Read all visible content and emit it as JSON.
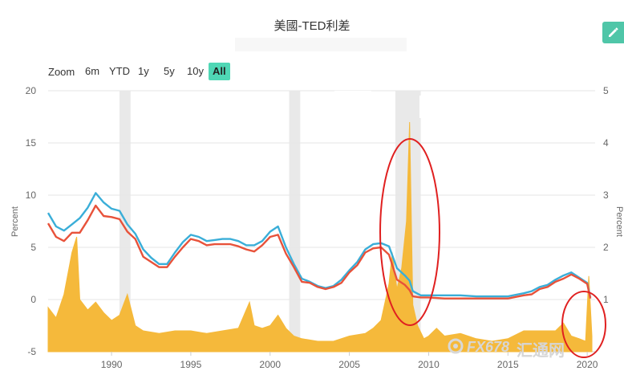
{
  "title": "美國-TED利差",
  "zoom": {
    "label": "Zoom",
    "buttons": [
      "6m",
      "YTD",
      "1y",
      "5y",
      "10y",
      "All"
    ],
    "active": "All"
  },
  "watermark": {
    "brand": "FX678",
    "cn": "汇通网"
  },
  "colors": {
    "spread": "#f5b93b",
    "blue": "#3aaed8",
    "red": "#e8523a",
    "recession": "#e9e9e9",
    "circle": "#e02020",
    "accent": "#4fd7b5"
  },
  "chart_data": {
    "type": "line",
    "xlabel": "",
    "ylabel": "Percent",
    "y2label": "Percent",
    "xlim": [
      1986,
      2020.5
    ],
    "ylim": [
      -5,
      20
    ],
    "y2lim": [
      0,
      5
    ],
    "xticks": [
      "1990",
      "1995",
      "2000",
      "2005",
      "2010",
      "2015",
      "2020"
    ],
    "yticks": [
      "-5",
      "0",
      "5",
      "10",
      "15",
      "20"
    ],
    "y2ticks": [
      "1",
      "2",
      "3",
      "4",
      "5"
    ],
    "recessions": [
      [
        1990.5,
        1991.2
      ],
      [
        2001.2,
        2001.9
      ],
      [
        2007.9,
        2009.5
      ]
    ],
    "series": [
      {
        "axis": "left",
        "x": [
          1986,
          1986.5,
          1987,
          1987.5,
          1988,
          1988.5,
          1989,
          1989.5,
          1990,
          1990.5,
          1991,
          1991.5,
          1992,
          1992.5,
          1993,
          1993.5,
          1994,
          1994.5,
          1995,
          1995.5,
          1996,
          1996.5,
          1997,
          1997.5,
          1998,
          1998.5,
          1999,
          1999.5,
          2000,
          2000.5,
          2001,
          2001.5,
          2002,
          2002.5,
          2003,
          2003.5,
          2004,
          2004.5,
          2005,
          2005.5,
          2006,
          2006.5,
          2007,
          2007.5,
          2008,
          2008.5,
          2008.8,
          2009,
          2009.5,
          2010,
          2011,
          2012,
          2013,
          2014,
          2015,
          2016,
          2016.5,
          2017,
          2017.5,
          2018,
          2018.5,
          2019,
          2019.5,
          2020,
          2020.2
        ],
        "y": [
          8.3,
          7.0,
          6.6,
          7.2,
          7.8,
          8.8,
          10.2,
          9.3,
          8.7,
          8.5,
          7.2,
          6.3,
          4.8,
          4.0,
          3.4,
          3.4,
          4.5,
          5.5,
          6.2,
          6.0,
          5.6,
          5.7,
          5.8,
          5.8,
          5.6,
          5.2,
          5.2,
          5.6,
          6.5,
          7.0,
          5.0,
          3.4,
          2.0,
          1.7,
          1.3,
          1.1,
          1.3,
          1.9,
          2.8,
          3.6,
          4.8,
          5.3,
          5.4,
          5.1,
          3.0,
          2.3,
          1.8,
          0.8,
          0.4,
          0.4,
          0.4,
          0.4,
          0.3,
          0.3,
          0.3,
          0.6,
          0.8,
          1.2,
          1.4,
          1.9,
          2.3,
          2.6,
          2.1,
          1.6,
          0.2
        ]
      },
      {
        "axis": "left",
        "x": [
          1986,
          1986.5,
          1987,
          1987.5,
          1988,
          1988.5,
          1989,
          1989.5,
          1990,
          1990.5,
          1991,
          1991.5,
          1992,
          1992.5,
          1993,
          1993.5,
          1994,
          1994.5,
          1995,
          1995.5,
          1996,
          1996.5,
          1997,
          1997.5,
          1998,
          1998.5,
          1999,
          1999.5,
          2000,
          2000.5,
          2001,
          2001.5,
          2002,
          2002.5,
          2003,
          2003.5,
          2004,
          2004.5,
          2005,
          2005.5,
          2006,
          2006.5,
          2007,
          2007.5,
          2008,
          2008.5,
          2008.8,
          2009,
          2009.5,
          2010,
          2011,
          2012,
          2013,
          2014,
          2015,
          2016,
          2016.5,
          2017,
          2017.5,
          2018,
          2018.5,
          2019,
          2019.5,
          2020,
          2020.2
        ],
        "y": [
          7.3,
          6.0,
          5.6,
          6.4,
          6.4,
          7.6,
          9.0,
          8.0,
          7.9,
          7.7,
          6.5,
          5.8,
          4.1,
          3.6,
          3.1,
          3.1,
          4.1,
          5.0,
          5.8,
          5.6,
          5.2,
          5.3,
          5.3,
          5.3,
          5.1,
          4.8,
          4.6,
          5.2,
          6.0,
          6.2,
          4.4,
          3.1,
          1.7,
          1.6,
          1.2,
          1.0,
          1.2,
          1.6,
          2.6,
          3.3,
          4.5,
          4.9,
          5.0,
          4.3,
          1.9,
          1.4,
          0.9,
          0.3,
          0.2,
          0.2,
          0.1,
          0.1,
          0.1,
          0.1,
          0.1,
          0.4,
          0.5,
          1.0,
          1.2,
          1.7,
          2.0,
          2.4,
          2.0,
          1.5,
          0.1
        ]
      },
      {
        "axis": "right",
        "x": [
          1986,
          1986.5,
          1987,
          1987.5,
          1987.8,
          1988,
          1988.5,
          1989,
          1989.5,
          1990,
          1990.5,
          1991,
          1991.5,
          1992,
          1993,
          1994,
          1995,
          1996,
          1997,
          1998,
          1998.7,
          1999,
          1999.5,
          2000,
          2000.5,
          2001,
          2001.5,
          2002,
          2003,
          2004,
          2005,
          2006,
          2006.5,
          2007,
          2007.5,
          2007.7,
          2008,
          2008.3,
          2008.6,
          2008.8,
          2009,
          2009.3,
          2009.7,
          2010,
          2010.5,
          2011,
          2012,
          2013,
          2014,
          2015,
          2016,
          2017,
          2018,
          2018.5,
          2019,
          2019.5,
          2019.9,
          2020.1,
          2020.3
        ],
        "y": [
          0.85,
          0.65,
          1.1,
          1.9,
          2.2,
          1.0,
          0.8,
          0.95,
          0.75,
          0.6,
          0.7,
          1.1,
          0.5,
          0.4,
          0.35,
          0.4,
          0.4,
          0.35,
          0.4,
          0.45,
          0.95,
          0.5,
          0.45,
          0.5,
          0.7,
          0.45,
          0.3,
          0.25,
          0.2,
          0.2,
          0.3,
          0.35,
          0.45,
          0.6,
          1.3,
          1.9,
          1.2,
          1.6,
          2.5,
          4.4,
          0.9,
          0.5,
          0.25,
          0.3,
          0.45,
          0.3,
          0.35,
          0.25,
          0.2,
          0.25,
          0.4,
          0.4,
          0.4,
          0.55,
          0.3,
          0.25,
          0.2,
          1.45,
          0.3
        ]
      }
    ]
  }
}
